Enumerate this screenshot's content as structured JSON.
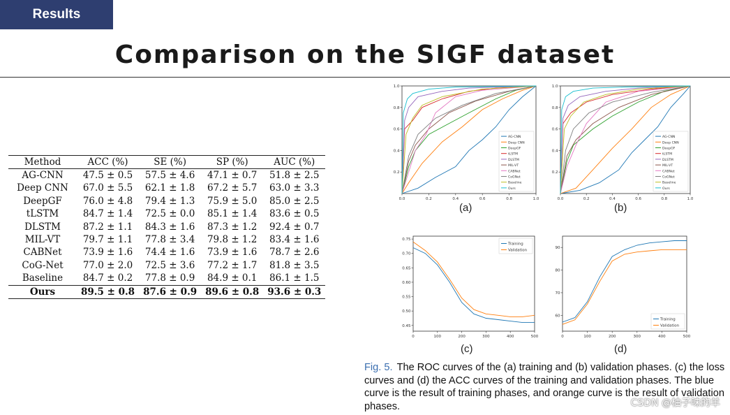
{
  "header": {
    "tag": "Results",
    "title": "Comparison on the SIGF dataset"
  },
  "table": {
    "columns": [
      "Method",
      "ACC (%)",
      "SE (%)",
      "SP (%)",
      "AUC (%)"
    ],
    "rows": [
      [
        "AG-CNN",
        "47.5 ± 0.5",
        "57.5 ± 4.6",
        "47.1 ± 0.7",
        "51.8 ± 2.5"
      ],
      [
        "Deep CNN",
        "67.0 ± 5.5",
        "62.1 ± 1.8",
        "67.2 ± 5.7",
        "63.0 ± 3.3"
      ],
      [
        "DeepGF",
        "76.0 ± 4.8",
        "79.4 ± 1.3",
        "75.9 ± 5.0",
        "85.0 ± 2.5"
      ],
      [
        "tLSTM",
        "84.7 ± 1.4",
        "72.5 ± 0.0",
        "85.1 ± 1.4",
        "83.6 ± 0.5"
      ],
      [
        "DLSTM",
        "87.2 ± 1.1",
        "84.3 ± 1.6",
        "87.3 ± 1.2",
        "92.4 ± 0.7"
      ],
      [
        "MIL-VT",
        "79.7 ± 1.1",
        "77.8 ± 3.4",
        "79.8 ± 1.2",
        "83.4 ± 1.6"
      ],
      [
        "CABNet",
        "73.9 ± 1.6",
        "74.4 ± 1.6",
        "73.9 ± 1.6",
        "78.7 ± 2.6"
      ],
      [
        "CoG-Net",
        "77.0 ± 2.0",
        "72.5 ± 3.6",
        "77.2 ± 1.7",
        "81.8 ± 3.5"
      ],
      [
        "Baseline",
        "84.7 ± 0.2",
        "77.8 ± 0.9",
        "84.9 ± 0.1",
        "86.1 ± 1.5"
      ],
      [
        "Ours",
        "89.5 ± 0.8",
        "87.6 ± 0.9",
        "89.6 ± 0.8",
        "93.6 ± 0.3"
      ]
    ]
  },
  "figure": {
    "sub_labels": [
      "(a)",
      "(b)",
      "(c)",
      "(d)"
    ],
    "caption_label": "Fig. 5.",
    "caption_text": "The ROC curves of the (a) training and (b) validation phases. (c) the loss curves and (d) the ACC curves of the training and validation phases. The blue curve is the result of training phases, and orange curve is the result of validation phases.",
    "watermark": "CSDN @柚子味的羊"
  },
  "chart_data": [
    {
      "type": "line",
      "id": "a",
      "xlim": [
        0,
        1.0
      ],
      "ylim": [
        0,
        1.0
      ],
      "xticks": [
        "0.0",
        "0.2",
        "0.4",
        "0.6",
        "0.8",
        "1.0"
      ],
      "yticks": [
        "0.2",
        "0.4",
        "0.6",
        "0.8",
        "1.0"
      ],
      "legend_position": "bottom-right",
      "series": [
        {
          "name": "AG-CNN",
          "color": "#1f77b4",
          "x": [
            0,
            0.12,
            0.25,
            0.4,
            0.5,
            0.6,
            0.7,
            0.8,
            0.9,
            1.0
          ],
          "y": [
            0,
            0.05,
            0.15,
            0.25,
            0.4,
            0.5,
            0.62,
            0.78,
            0.9,
            1.0
          ]
        },
        {
          "name": "Deep CNN",
          "color": "#ff7f0e",
          "x": [
            0,
            0.05,
            0.15,
            0.3,
            0.45,
            0.6,
            0.75,
            0.9,
            1.0
          ],
          "y": [
            0,
            0.1,
            0.28,
            0.48,
            0.62,
            0.78,
            0.88,
            0.96,
            1.0
          ]
        },
        {
          "name": "DeepGF",
          "color": "#2ca02c",
          "x": [
            0,
            0.05,
            0.1,
            0.2,
            0.35,
            0.5,
            0.7,
            0.85,
            1.0
          ],
          "y": [
            0,
            0.25,
            0.4,
            0.55,
            0.65,
            0.75,
            0.88,
            0.96,
            1.0
          ]
        },
        {
          "name": "tLSTM",
          "color": "#d62728",
          "x": [
            0,
            0.02,
            0.08,
            0.15,
            0.3,
            0.5,
            0.7,
            1.0
          ],
          "y": [
            0,
            0.6,
            0.68,
            0.8,
            0.88,
            0.95,
            0.98,
            1.0
          ]
        },
        {
          "name": "DLSTM",
          "color": "#9467bd",
          "x": [
            0,
            0.02,
            0.05,
            0.12,
            0.3,
            0.5,
            1.0
          ],
          "y": [
            0,
            0.68,
            0.8,
            0.9,
            0.95,
            0.98,
            1.0
          ]
        },
        {
          "name": "MIL-VT",
          "color": "#8c564b",
          "x": [
            0,
            0.05,
            0.1,
            0.2,
            0.35,
            0.55,
            0.8,
            1.0
          ],
          "y": [
            0,
            0.3,
            0.45,
            0.6,
            0.75,
            0.86,
            0.95,
            1.0
          ]
        },
        {
          "name": "CABNet",
          "color": "#e377c2",
          "x": [
            0,
            0.05,
            0.1,
            0.18,
            0.25,
            0.4,
            0.6,
            1.0
          ],
          "y": [
            0,
            0.2,
            0.4,
            0.55,
            0.75,
            0.9,
            0.96,
            1.0
          ]
        },
        {
          "name": "CoGNet",
          "color": "#7f7f7f",
          "x": [
            0,
            0.05,
            0.12,
            0.25,
            0.45,
            0.7,
            1.0
          ],
          "y": [
            0,
            0.35,
            0.55,
            0.7,
            0.82,
            0.93,
            1.0
          ]
        },
        {
          "name": "Baseline",
          "color": "#bcbd22",
          "x": [
            0,
            0.03,
            0.08,
            0.15,
            0.3,
            0.6,
            1.0
          ],
          "y": [
            0,
            0.55,
            0.7,
            0.82,
            0.9,
            0.97,
            1.0
          ]
        },
        {
          "name": "Ours",
          "color": "#17becf",
          "x": [
            0,
            0.01,
            0.04,
            0.08,
            0.2,
            0.4,
            1.0
          ],
          "y": [
            0,
            0.75,
            0.88,
            0.93,
            0.97,
            0.99,
            1.0
          ]
        }
      ]
    },
    {
      "type": "line",
      "id": "b",
      "xlim": [
        0,
        1.0
      ],
      "ylim": [
        0,
        1.0
      ],
      "xticks": [
        "0.0",
        "0.2",
        "0.4",
        "0.6",
        "0.8",
        "1.0"
      ],
      "yticks": [
        "0.2",
        "0.4",
        "0.6",
        "0.8",
        "1.0"
      ],
      "legend_position": "bottom-right",
      "series": [
        {
          "name": "AG-CNN",
          "color": "#1f77b4",
          "x": [
            0,
            0.15,
            0.3,
            0.45,
            0.55,
            0.65,
            0.75,
            0.85,
            0.95,
            1.0
          ],
          "y": [
            0,
            0.03,
            0.1,
            0.22,
            0.38,
            0.5,
            0.62,
            0.8,
            0.93,
            1.0
          ]
        },
        {
          "name": "Deep CNN",
          "color": "#ff7f0e",
          "x": [
            0,
            0.12,
            0.25,
            0.4,
            0.55,
            0.7,
            0.85,
            1.0
          ],
          "y": [
            0,
            0.05,
            0.22,
            0.42,
            0.6,
            0.8,
            0.92,
            1.0
          ]
        },
        {
          "name": "DeepGF",
          "color": "#2ca02c",
          "x": [
            0,
            0.05,
            0.1,
            0.25,
            0.4,
            0.6,
            0.8,
            1.0
          ],
          "y": [
            0,
            0.3,
            0.45,
            0.6,
            0.72,
            0.85,
            0.95,
            1.0
          ]
        },
        {
          "name": "tLSTM",
          "color": "#d62728",
          "x": [
            0,
            0.02,
            0.08,
            0.2,
            0.4,
            0.7,
            1.0
          ],
          "y": [
            0,
            0.65,
            0.75,
            0.85,
            0.92,
            0.97,
            1.0
          ]
        },
        {
          "name": "DLSTM",
          "color": "#9467bd",
          "x": [
            0,
            0.02,
            0.06,
            0.15,
            0.35,
            0.6,
            1.0
          ],
          "y": [
            0,
            0.7,
            0.82,
            0.9,
            0.95,
            0.98,
            1.0
          ]
        },
        {
          "name": "MIL-VT",
          "color": "#8c564b",
          "x": [
            0,
            0.05,
            0.12,
            0.25,
            0.45,
            0.7,
            1.0
          ],
          "y": [
            0,
            0.35,
            0.5,
            0.65,
            0.8,
            0.92,
            1.0
          ]
        },
        {
          "name": "CABNet",
          "color": "#e377c2",
          "x": [
            0,
            0.05,
            0.12,
            0.2,
            0.35,
            0.6,
            1.0
          ],
          "y": [
            0,
            0.25,
            0.45,
            0.65,
            0.85,
            0.95,
            1.0
          ]
        },
        {
          "name": "CoGNet",
          "color": "#7f7f7f",
          "x": [
            0,
            0.04,
            0.1,
            0.22,
            0.4,
            0.7,
            1.0
          ],
          "y": [
            0,
            0.4,
            0.6,
            0.75,
            0.85,
            0.94,
            1.0
          ]
        },
        {
          "name": "Baseline",
          "color": "#bcbd22",
          "x": [
            0,
            0.03,
            0.08,
            0.18,
            0.35,
            0.6,
            1.0
          ],
          "y": [
            0,
            0.6,
            0.72,
            0.85,
            0.92,
            0.97,
            1.0
          ]
        },
        {
          "name": "Ours",
          "color": "#17becf",
          "x": [
            0,
            0.01,
            0.04,
            0.1,
            0.25,
            0.5,
            1.0
          ],
          "y": [
            0,
            0.78,
            0.9,
            0.95,
            0.98,
            0.99,
            1.0
          ]
        }
      ]
    },
    {
      "type": "line",
      "id": "c",
      "xlim": [
        0,
        500
      ],
      "ylim": [
        0.43,
        0.76
      ],
      "xticks": [
        "0",
        "100",
        "200",
        "300",
        "400",
        "500"
      ],
      "yticks": [
        "0.45",
        "0.50",
        "0.55",
        "0.60",
        "0.65",
        "0.70",
        "0.75"
      ],
      "legend_position": "top-right",
      "series": [
        {
          "name": "Training",
          "color": "#1f77b4",
          "x": [
            0,
            50,
            100,
            150,
            200,
            250,
            300,
            350,
            400,
            450,
            500
          ],
          "y": [
            0.72,
            0.7,
            0.66,
            0.6,
            0.53,
            0.49,
            0.475,
            0.47,
            0.465,
            0.46,
            0.46
          ]
        },
        {
          "name": "Validation",
          "color": "#ff7f0e",
          "x": [
            0,
            50,
            100,
            150,
            200,
            250,
            300,
            350,
            400,
            450,
            500
          ],
          "y": [
            0.74,
            0.71,
            0.67,
            0.61,
            0.545,
            0.505,
            0.49,
            0.485,
            0.48,
            0.48,
            0.485
          ]
        }
      ]
    },
    {
      "type": "line",
      "id": "d",
      "xlim": [
        0,
        500
      ],
      "ylim": [
        53,
        95
      ],
      "xticks": [
        "0",
        "100",
        "200",
        "300",
        "400",
        "500"
      ],
      "yticks": [
        "60",
        "70",
        "80",
        "90"
      ],
      "legend_position": "bottom-right",
      "series": [
        {
          "name": "Training",
          "color": "#1f77b4",
          "x": [
            0,
            50,
            100,
            150,
            200,
            250,
            300,
            350,
            400,
            450,
            500
          ],
          "y": [
            57,
            59,
            66,
            77,
            86,
            89,
            91,
            92,
            92.5,
            93,
            93
          ]
        },
        {
          "name": "Validation",
          "color": "#ff7f0e",
          "x": [
            0,
            50,
            100,
            150,
            200,
            250,
            300,
            350,
            400,
            450,
            500
          ],
          "y": [
            56,
            58,
            65,
            75,
            84,
            87,
            88,
            88.5,
            89,
            89,
            89
          ]
        }
      ]
    }
  ]
}
